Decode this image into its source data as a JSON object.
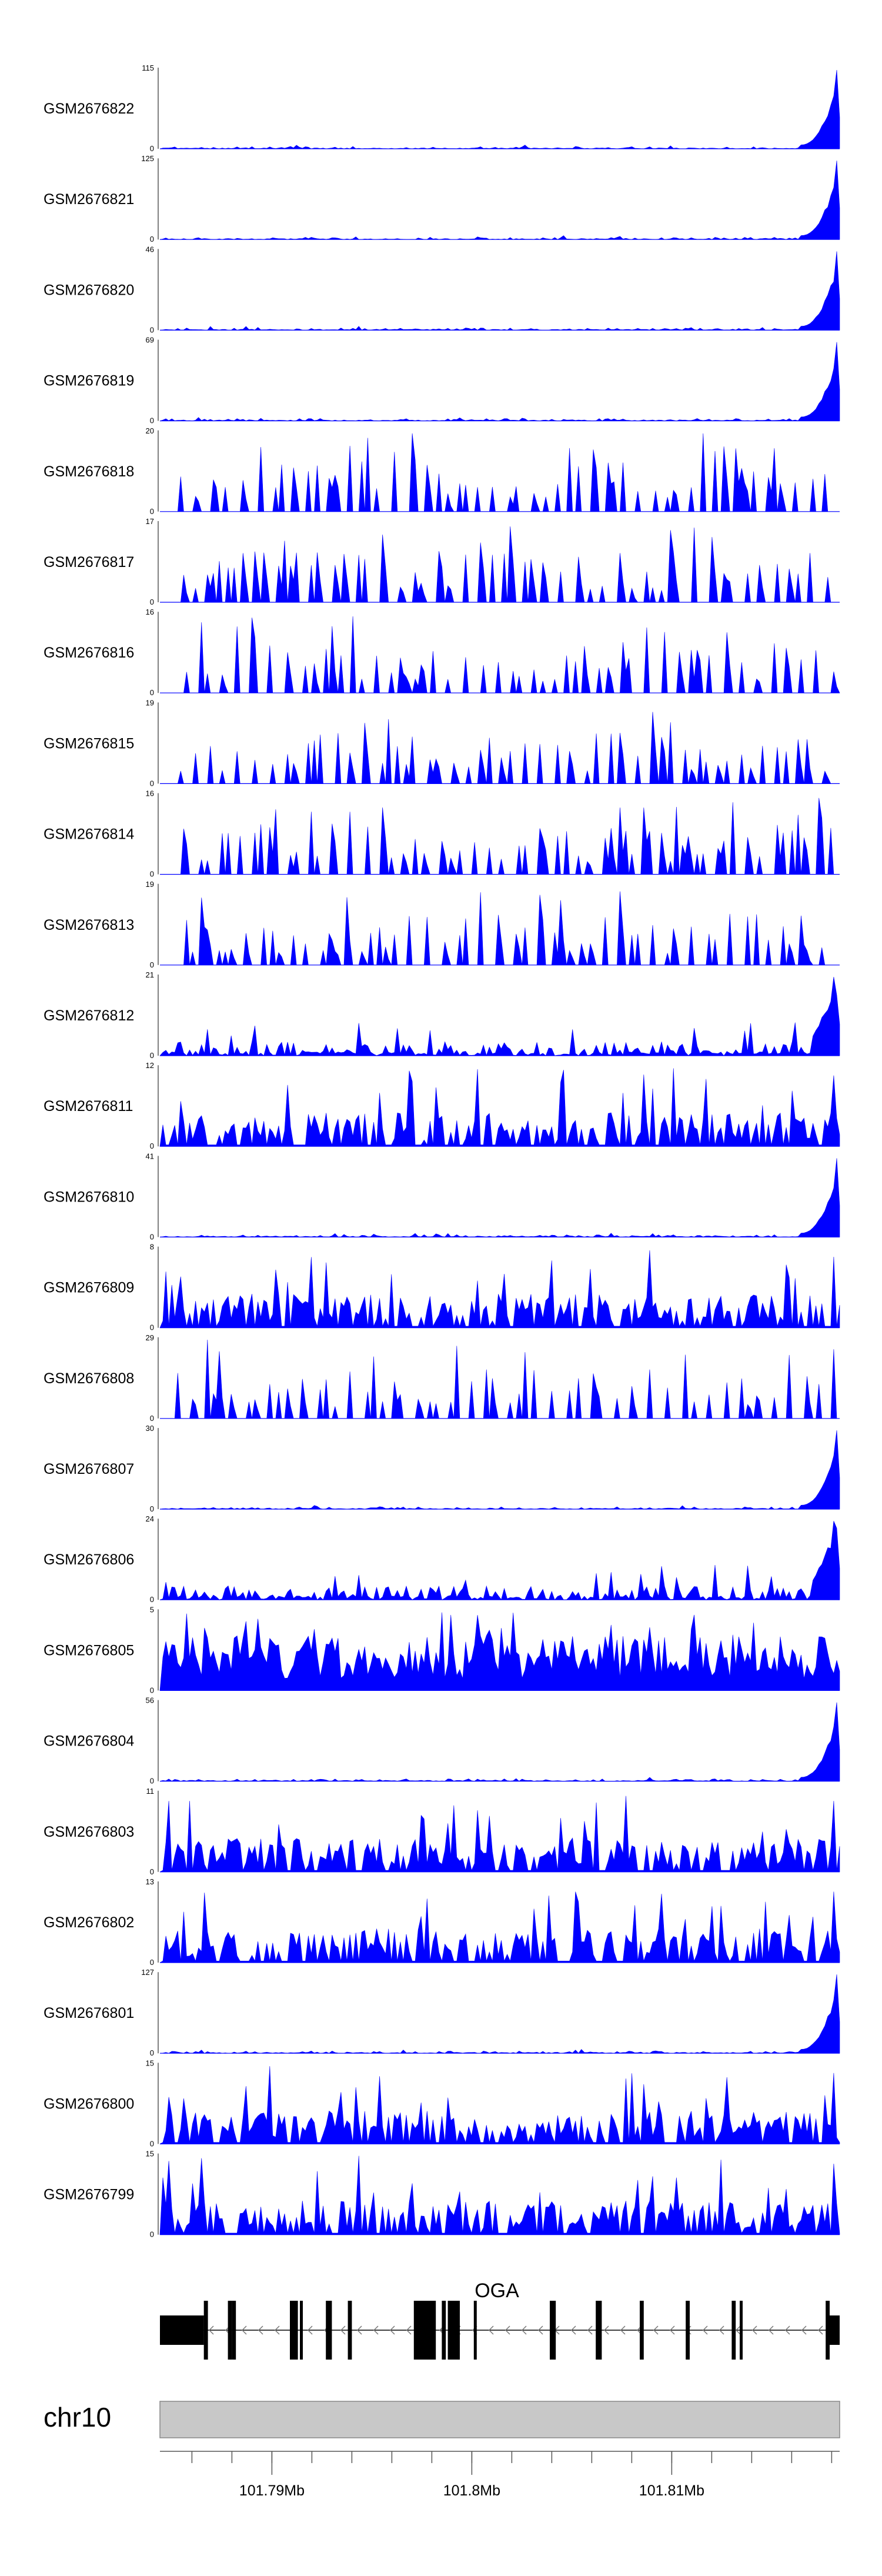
{
  "chart_data": {
    "type": "area",
    "title": "",
    "fill_color": "#0000ff",
    "x_range_mb": [
      101.7844,
      101.8184
    ],
    "tracks": [
      {
        "name": "GSM2676822",
        "max": "115",
        "min": "0",
        "profile": "end_peak",
        "seed": 22
      },
      {
        "name": "GSM2676821",
        "max": "125",
        "min": "0",
        "profile": "end_peak",
        "seed": 21
      },
      {
        "name": "GSM2676820",
        "max": "46",
        "min": "0",
        "profile": "end_peak",
        "seed": 20
      },
      {
        "name": "GSM2676819",
        "max": "69",
        "min": "0",
        "profile": "end_peak",
        "seed": 19
      },
      {
        "name": "GSM2676818",
        "max": "20",
        "min": "0",
        "profile": "spiky",
        "seed": 18
      },
      {
        "name": "GSM2676817",
        "max": "17",
        "min": "0",
        "profile": "spiky",
        "seed": 17
      },
      {
        "name": "GSM2676816",
        "max": "16",
        "min": "0",
        "profile": "spiky",
        "seed": 16
      },
      {
        "name": "GSM2676815",
        "max": "19",
        "min": "0",
        "profile": "spiky",
        "seed": 15
      },
      {
        "name": "GSM2676814",
        "max": "16",
        "min": "0",
        "profile": "spiky",
        "seed": 14
      },
      {
        "name": "GSM2676813",
        "max": "19",
        "min": "0",
        "profile": "spiky",
        "seed": 13
      },
      {
        "name": "GSM2676812",
        "max": "21",
        "min": "0",
        "profile": "end_mid",
        "seed": 12
      },
      {
        "name": "GSM2676811",
        "max": "12",
        "min": "0",
        "profile": "dense",
        "seed": 11
      },
      {
        "name": "GSM2676810",
        "max": "41",
        "min": "0",
        "profile": "end_peak",
        "seed": 10
      },
      {
        "name": "GSM2676809",
        "max": "8",
        "min": "0",
        "profile": "dense",
        "seed": 9
      },
      {
        "name": "GSM2676808",
        "max": "29",
        "min": "0",
        "profile": "spiky",
        "seed": 8
      },
      {
        "name": "GSM2676807",
        "max": "30",
        "min": "0",
        "profile": "end_peak",
        "seed": 7
      },
      {
        "name": "GSM2676806",
        "max": "24",
        "min": "0",
        "profile": "end_mid",
        "seed": 6
      },
      {
        "name": "GSM2676805",
        "max": "5",
        "min": "0",
        "profile": "very_dense",
        "seed": 5
      },
      {
        "name": "GSM2676804",
        "max": "56",
        "min": "0",
        "profile": "end_peak",
        "seed": 4
      },
      {
        "name": "GSM2676803",
        "max": "11",
        "min": "0",
        "profile": "dense",
        "seed": 3
      },
      {
        "name": "GSM2676802",
        "max": "13",
        "min": "0",
        "profile": "dense",
        "seed": 2
      },
      {
        "name": "GSM2676801",
        "max": "127",
        "min": "0",
        "profile": "end_peak",
        "seed": 1
      },
      {
        "name": "GSM2676800",
        "max": "15",
        "min": "0",
        "profile": "dense",
        "seed": 100
      },
      {
        "name": "GSM2676799",
        "max": "15",
        "min": "0",
        "profile": "dense",
        "seed": 99
      }
    ],
    "gene": {
      "name": "OGA",
      "strand": "-",
      "exons": [
        {
          "start": 101.7844,
          "end": 101.7866,
          "tall": false
        },
        {
          "start": 101.7866,
          "end": 101.7866,
          "tall": true
        },
        {
          "start": 101.7866,
          "end": 101.7868,
          "tall": true
        },
        {
          "start": 101.7878,
          "end": 101.788,
          "tall": true
        },
        {
          "start": 101.788,
          "end": 101.7882,
          "tall": true
        },
        {
          "start": 101.7909,
          "end": 101.7913,
          "tall": true
        },
        {
          "start": 101.7914,
          "end": 101.7915,
          "tall": true
        },
        {
          "start": 101.7927,
          "end": 101.793,
          "tall": true
        },
        {
          "start": 101.7938,
          "end": 101.794,
          "tall": true
        },
        {
          "start": 101.7971,
          "end": 101.7982,
          "tall": true
        },
        {
          "start": 101.7985,
          "end": 101.7987,
          "tall": true
        },
        {
          "start": 101.7988,
          "end": 101.7994,
          "tall": true
        },
        {
          "start": 101.8001,
          "end": 101.8002,
          "tall": true
        },
        {
          "start": 101.8039,
          "end": 101.8042,
          "tall": true
        },
        {
          "start": 101.8062,
          "end": 101.8065,
          "tall": true
        },
        {
          "start": 101.8084,
          "end": 101.8086,
          "tall": true
        },
        {
          "start": 101.8107,
          "end": 101.8109,
          "tall": true
        },
        {
          "start": 101.813,
          "end": 101.8132,
          "tall": true
        },
        {
          "start": 101.8134,
          "end": 101.8135,
          "tall": true
        },
        {
          "start": 101.8177,
          "end": 101.8179,
          "tall": true
        },
        {
          "start": 101.8179,
          "end": 101.8184,
          "tall": false
        }
      ]
    },
    "chromosome": "chr10",
    "axis": {
      "major_ticks": [
        {
          "value": 101.79,
          "label": "101.79Mb"
        },
        {
          "value": 101.8,
          "label": "101.8Mb"
        },
        {
          "value": 101.81,
          "label": "101.81Mb"
        }
      ],
      "minor_tick_step_mb": 0.002
    }
  }
}
